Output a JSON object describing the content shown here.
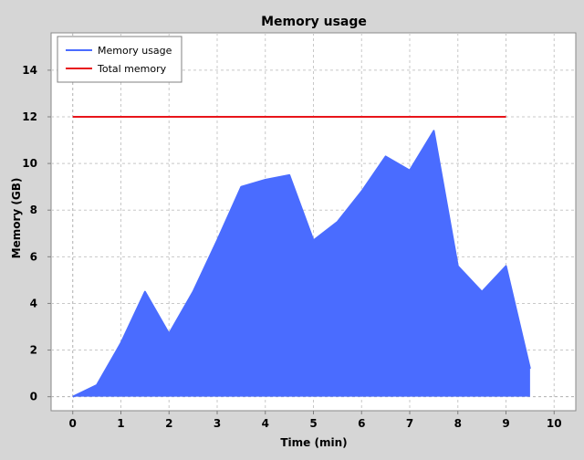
{
  "chart_data": {
    "type": "area",
    "title": "Memory usage",
    "xlabel": "Time (min)",
    "ylabel": "Memory (GB)",
    "xlim": [
      -0.45,
      10.45
    ],
    "ylim": [
      -0.6,
      15.6
    ],
    "x_ticks": [
      0,
      1,
      2,
      3,
      4,
      5,
      6,
      7,
      8,
      9,
      10
    ],
    "y_ticks": [
      0,
      2,
      4,
      6,
      8,
      10,
      12,
      14
    ],
    "grid": true,
    "legend_position": "top-left",
    "series": [
      {
        "name": "Memory usage",
        "kind": "area",
        "color": "#4a6cff",
        "fill": "#4a6cff",
        "x": [
          0,
          0.5,
          1,
          1.5,
          2,
          2.5,
          3,
          3.5,
          4,
          4.5,
          5,
          5.5,
          6,
          6.5,
          7,
          7.5,
          8,
          8.5,
          9,
          9.5
        ],
        "y": [
          0,
          0.5,
          2.3,
          4.5,
          2.7,
          4.5,
          6.7,
          9.0,
          9.3,
          9.5,
          6.7,
          7.5,
          8.8,
          10.3,
          9.7,
          11.4,
          5.6,
          4.5,
          5.6,
          1.2
        ]
      },
      {
        "name": "Total memory",
        "kind": "line",
        "color": "#e8141a",
        "x": [
          0,
          9
        ],
        "y": [
          12,
          12
        ]
      }
    ]
  }
}
